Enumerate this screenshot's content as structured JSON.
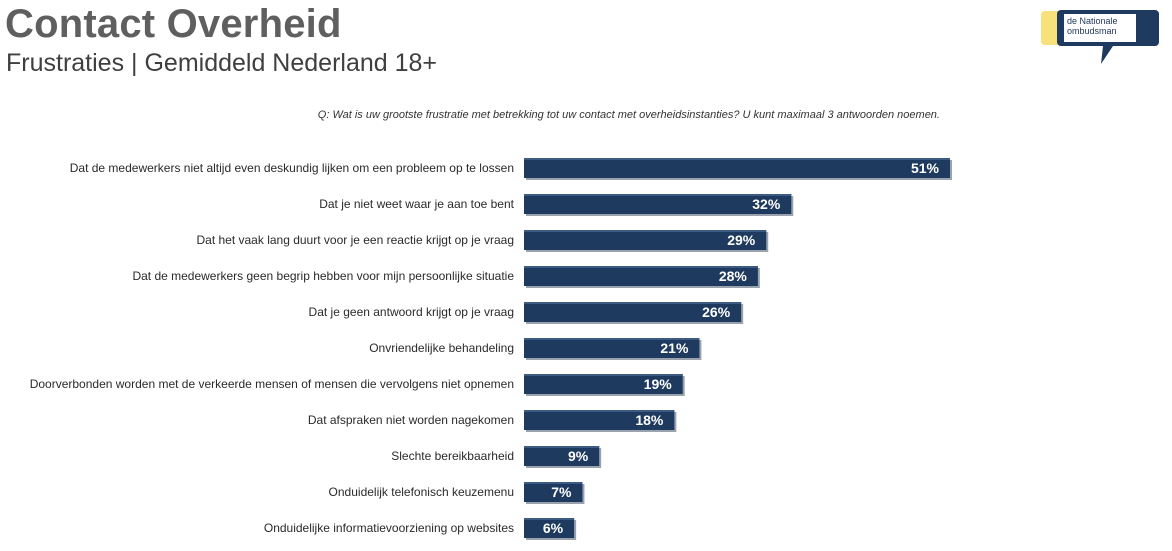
{
  "header": {
    "title": "Contact Overheid",
    "subtitle": "Frustraties | Gemiddeld Nederland 18+",
    "question": "Q: Wat is uw grootste frustratie met betrekking tot uw contact met overheidsinstanties? U kunt maximaal 3 antwoorden noemen."
  },
  "logo": {
    "line1": "de Nationale",
    "line2": "ombudsman",
    "colors": {
      "yellow": "#f8e07a",
      "navy": "#1f3a5f"
    }
  },
  "colors": {
    "bar_fill": "#1f3a5f",
    "bar_highlight": "#3c5a82",
    "bar_shadow": "#9aa3ad"
  },
  "chart_data": {
    "type": "bar",
    "orientation": "horizontal",
    "title": "",
    "xlabel": "",
    "ylabel": "",
    "xlim": [
      0,
      51
    ],
    "grid": false,
    "categories": [
      "Dat de medewerkers niet altijd even deskundig lijken om een probleem op te lossen",
      "Dat je niet weet waar je aan toe bent",
      "Dat het vaak lang duurt voor je een reactie krijgt op je vraag",
      "Dat de medewerkers geen begrip hebben voor mijn persoonlijke situatie",
      "Dat je geen antwoord krijgt op je vraag",
      "Onvriendelijke behandeling",
      "Doorverbonden worden met de verkeerde mensen of mensen die vervolgens niet opnemen",
      "Dat afspraken niet worden nagekomen",
      "Slechte bereikbaarheid",
      "Onduidelijk telefonisch keuzemenu",
      "Onduidelijke informatievoorziening op websites"
    ],
    "values": [
      51,
      32,
      29,
      28,
      26,
      21,
      19,
      18,
      9,
      7,
      6
    ],
    "value_labels": [
      "51%",
      "32%",
      "29%",
      "28%",
      "26%",
      "21%",
      "19%",
      "18%",
      "9%",
      "7%",
      "6%"
    ]
  }
}
